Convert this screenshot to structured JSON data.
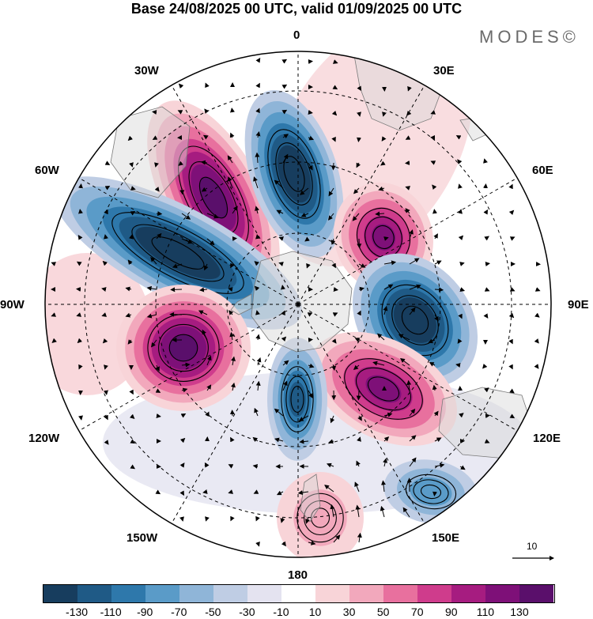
{
  "title": "Base 24/08/2025 00 UTC, valid 01/09/2025 00 UTC",
  "brand": "MODES©",
  "lon_labels": {
    "lon_0": "0",
    "lon_30e": "30E",
    "lon_60e": "60E",
    "lon_90e": "90E",
    "lon_120e": "120E",
    "lon_150e": "150E",
    "lon_180": "180",
    "lon_150w": "150W",
    "lon_120w": "120W",
    "lon_90w": "90W",
    "lon_60w": "60W",
    "lon_30w": "30W"
  },
  "reference_vector": "10",
  "colorbar": {
    "levels": [
      "-130",
      "-110",
      "-90",
      "-70",
      "-50",
      "-30",
      "-10",
      "10",
      "30",
      "50",
      "70",
      "90",
      "110",
      "130"
    ],
    "colors": [
      "#173d5e",
      "#1f5a86",
      "#2e78ab",
      "#5a9bc8",
      "#8fb5d8",
      "#bfcde4",
      "#e4e3f0",
      "#ffffff",
      "#f8d4d8",
      "#f2a8bc",
      "#e8709e",
      "#cf3c8c",
      "#a61c80",
      "#7e1078",
      "#5a0f6b"
    ]
  },
  "anomaly_centers": [
    {
      "sign": "positive",
      "lon": "45W",
      "strength": "130"
    },
    {
      "sign": "negative",
      "lon": "70W",
      "strength": "-130"
    },
    {
      "sign": "negative",
      "lon": "10W",
      "strength": "-130"
    },
    {
      "sign": "positive",
      "lon": "50E",
      "strength": "110"
    },
    {
      "sign": "negative",
      "lon": "90E",
      "strength": "-130"
    },
    {
      "sign": "positive",
      "lon": "120E",
      "strength": "110"
    },
    {
      "sign": "positive",
      "lon": "110W",
      "strength": "130"
    },
    {
      "sign": "negative",
      "lon": "175W",
      "strength": "-90"
    },
    {
      "sign": "negative",
      "lon": "140E",
      "strength": "-50"
    },
    {
      "sign": "positive",
      "lon": "175E",
      "strength": "30"
    }
  ]
}
